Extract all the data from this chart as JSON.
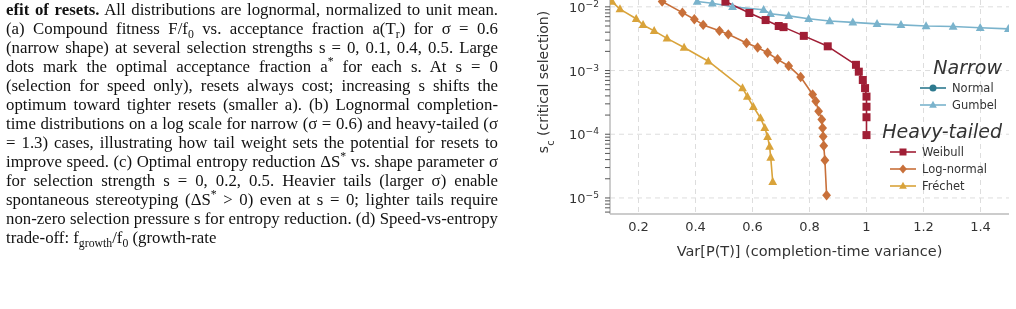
{
  "chart_data": {
    "type": "line",
    "xlabel": "Var[P(T)] (completion-time variance)",
    "ylabel": "s$_{c}$ (critical selection)",
    "xlim": [
      0.1,
      1.5
    ],
    "xticks": [
      0.2,
      0.4,
      0.6,
      0.8,
      1.0,
      1.2,
      1.4
    ],
    "ylim": [
      5.6e-06,
      0.0128
    ],
    "log": "y",
    "yticks": [
      {
        "value": 6e-06,
        "label": null
      },
      {
        "value": 7e-06,
        "label": null
      },
      {
        "value": 8e-06,
        "label": null
      },
      {
        "value": 9e-06,
        "label": null
      },
      {
        "value": 1e-05,
        "label": "10$^{−5}$"
      },
      {
        "value": 2e-05,
        "label": null
      },
      {
        "value": 3e-05,
        "label": null
      },
      {
        "value": 4e-05,
        "label": null
      },
      {
        "value": 5e-05,
        "label": null
      },
      {
        "value": 6e-05,
        "label": null
      },
      {
        "value": 7e-05,
        "label": null
      },
      {
        "value": 8e-05,
        "label": null
      },
      {
        "value": 9e-05,
        "label": null
      },
      {
        "value": 0.0001,
        "label": "10$^{−4}$"
      },
      {
        "value": 0.0002,
        "label": null
      },
      {
        "value": 0.0003,
        "label": null
      },
      {
        "value": 0.0004,
        "label": null
      },
      {
        "value": 0.0005,
        "label": null
      },
      {
        "value": 0.0006,
        "label": null
      },
      {
        "value": 0.0007,
        "label": null
      },
      {
        "value": 0.0008,
        "label": null
      },
      {
        "value": 0.0009,
        "label": null
      },
      {
        "value": 0.001,
        "label": "10$^{−3}$"
      },
      {
        "value": 0.002,
        "label": null
      },
      {
        "value": 0.003,
        "label": null
      },
      {
        "value": 0.004,
        "label": null
      },
      {
        "value": 0.005,
        "label": null
      },
      {
        "value": 0.006,
        "label": null
      },
      {
        "value": 0.007,
        "label": null
      },
      {
        "value": 0.008,
        "label": null
      },
      {
        "value": 0.009,
        "label": null
      },
      {
        "value": 0.01,
        "label": "10$^{−2}$"
      }
    ],
    "grid": true,
    "legend": "right",
    "line_style": "solid",
    "series": [
      {
        "name": "Normal",
        "color": "#2e7a8f",
        "marker": "circle"
      },
      {
        "name": "Gumbel",
        "color": "#7ab3cc",
        "marker": "triangle",
        "x": [
          0.406,
          0.459,
          0.53,
          0.639,
          0.663,
          0.727,
          0.797,
          0.871,
          0.952,
          1.037,
          1.121,
          1.209,
          1.304,
          1.399,
          1.498
        ],
        "values": [
          0.0121,
          0.0114,
          0.01,
          0.009,
          0.0078,
          0.0072,
          0.0065,
          0.006,
          0.0057,
          0.0054,
          0.0052,
          0.005,
          0.0049,
          0.0047,
          0.0045
        ]
      },
      {
        "name": "Weibull",
        "color": "#a01e35",
        "marker": "square",
        "x": [
          0.505,
          0.589,
          0.646,
          0.692,
          0.709,
          0.78,
          0.864,
          0.963,
          0.973,
          0.987,
          0.995,
          1.0,
          1.0,
          1.0,
          1.0
        ],
        "values": [
          0.0121,
          0.008,
          0.0062,
          0.005,
          0.0048,
          0.0035,
          0.0024,
          0.00123,
          0.00096,
          0.00071,
          0.00053,
          0.00039,
          0.00027,
          0.000185,
          9.7e-05
        ]
      },
      {
        "name": "Log-normal",
        "color": "#c8703a",
        "marker": "diamond",
        "x": [
          0.283,
          0.354,
          0.396,
          0.427,
          0.484,
          0.515,
          0.579,
          0.618,
          0.653,
          0.688,
          0.727,
          0.769,
          0.811,
          0.822,
          0.832,
          0.843,
          0.846,
          0.848,
          0.85,
          0.854,
          0.86
        ],
        "values": [
          0.0121,
          0.0081,
          0.0064,
          0.0052,
          0.0042,
          0.0037,
          0.0027,
          0.0023,
          0.0019,
          0.0015,
          0.00118,
          0.00079,
          0.00042,
          0.00033,
          0.00023,
          0.00017,
          0.000125,
          9.2e-05,
          6.6e-05,
          3.9e-05,
          1.1e-05
        ]
      },
      {
        "name": "Fréchet",
        "color": "#d9a33a",
        "marker": "triangle",
        "x": [
          0.107,
          0.135,
          0.192,
          0.216,
          0.255,
          0.3,
          0.36,
          0.445,
          0.565,
          0.582,
          0.603,
          0.628,
          0.643,
          0.653,
          0.66,
          0.664,
          0.671
        ],
        "values": [
          0.0121,
          0.0092,
          0.0065,
          0.0052,
          0.0042,
          0.0032,
          0.0023,
          0.0014,
          0.00053,
          0.00039,
          0.00027,
          0.00018,
          0.000126,
          9.1e-05,
          6.4e-05,
          4.3e-05,
          1.8e-05
        ]
      }
    ],
    "annotations": [
      "Narrow",
      "Heavy-tailed",
      "efit of resets.",
      "All distributions are lognormal, normalized to unit mean. (a) Compound fitness F/f$_{0}$ vs. acceptance fraction a(T$_{r}$) for σ = 0.6 (narrow shape) at several selection strengths s = 0, 0.1, 0.4, 0.5. Large dots mark the optimal acceptance fraction a$^{*}$ for each s. At s = 0 (selection for speed only), resets always cost; increasing s shifts the optimum toward tighter resets (smaller a). (b) Lognormal completion-time distributions on a log scale for narrow (σ = 0.6) and heavy-tailed (σ = 1.3) cases, illustrating how tail weight sets the potential for resets to improve speed. (c) Optimal entropy reduction ΔS$^{*}$ vs. shape parameter σ for selection strength s = 0, 0.2, 0.5. Heavier tails (larger σ) enable spontaneous stereotyping (ΔS$^{*}$ > 0) even at s = 0; lighter tails require non-zero selection pressure s for entropy reduction. (d) Speed-vs-entropy trade-off: f$_{growth}$/f$_{0}$ (growth-rate"
    ]
  }
}
